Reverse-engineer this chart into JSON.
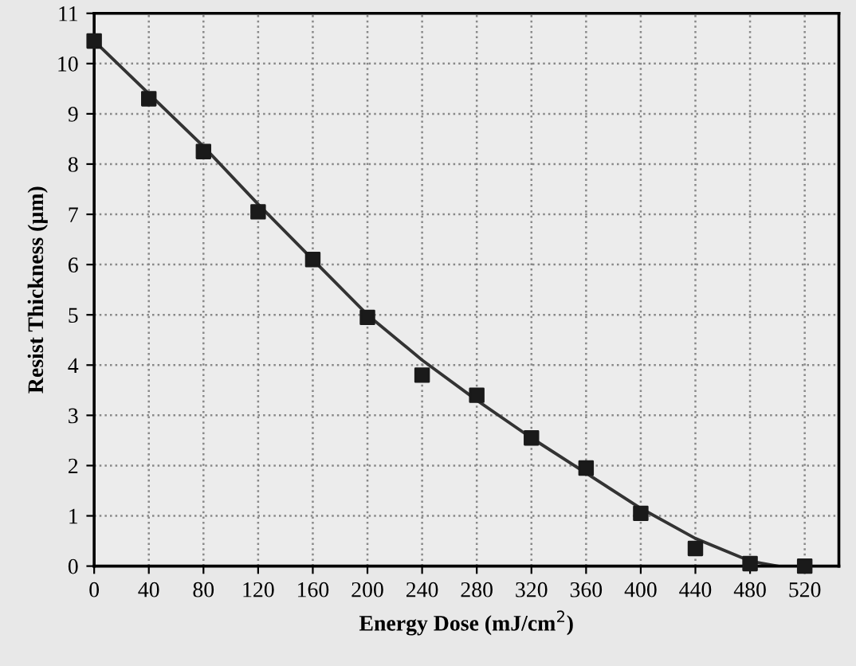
{
  "chart_data": {
    "type": "scatter",
    "xlabel": "Energy Dose (mJ/cm$^{2}$)",
    "ylabel": "Resist Thickness (µm)",
    "x": [
      0,
      40,
      80,
      120,
      160,
      200,
      240,
      280,
      320,
      360,
      400,
      440,
      480,
      520
    ],
    "series": [
      {
        "color": "#1a1a1a",
        "marker": "square",
        "values": [
          10.45,
          9.3,
          8.25,
          7.05,
          6.1,
          4.95,
          3.8,
          3.4,
          2.55,
          1.95,
          1.05,
          0.35,
          0.05,
          0
        ]
      },
      {
        "type": "line",
        "color": "#333333",
        "marker": "none",
        "line_style": "solid",
        "x": [
          0,
          40,
          80,
          120,
          160,
          200,
          240,
          280,
          320,
          360,
          400,
          440,
          480,
          500
        ],
        "values": [
          10.45,
          9.4,
          8.35,
          7.2,
          6.1,
          5.0,
          4.1,
          3.3,
          2.55,
          1.85,
          1.15,
          0.55,
          0.1,
          0
        ]
      }
    ],
    "xlim": [
      0,
      545
    ],
    "ylim": [
      0,
      11
    ],
    "xticks": [
      {
        "value": 0,
        "label": "0"
      },
      40,
      80,
      120,
      160,
      200,
      240,
      280,
      320,
      360,
      400,
      440,
      480,
      520
    ],
    "yticks": [
      0,
      1,
      2,
      3,
      4,
      5,
      6,
      7,
      8,
      9,
      10,
      11
    ],
    "grid": true
  }
}
